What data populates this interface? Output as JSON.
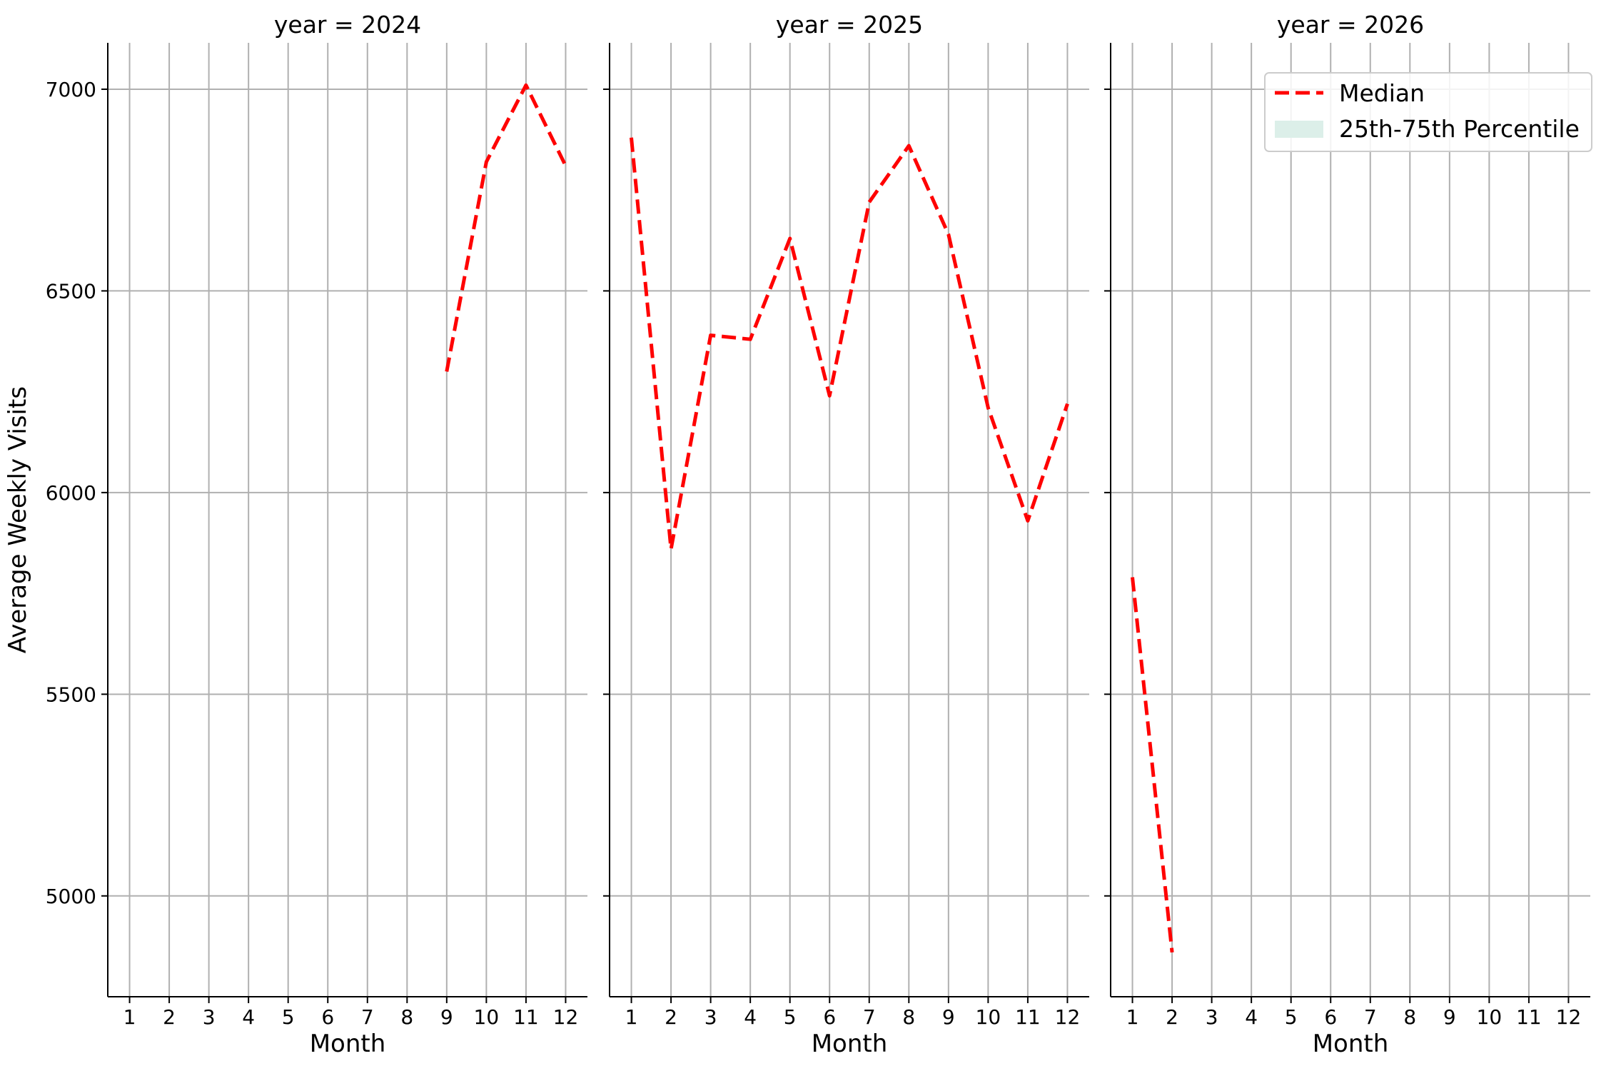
{
  "chart_data": {
    "type": "line",
    "ylabel": "Average Weekly Visits",
    "xlabel": "Month",
    "x_ticks": [
      1,
      2,
      3,
      4,
      5,
      6,
      7,
      8,
      9,
      10,
      11,
      12
    ],
    "y_ticks": [
      5000,
      5500,
      6000,
      6500,
      7000
    ],
    "xlim": [
      0.45,
      12.55
    ],
    "ylim": [
      4750,
      7115
    ],
    "grid": true,
    "legend_position": "top-right",
    "legend": [
      {
        "label": "Median",
        "kind": "dashed-line",
        "color": "#ff0000"
      },
      {
        "label": "25th-75th Percentile",
        "kind": "patch",
        "color": "#dcefe9"
      }
    ],
    "panels": [
      {
        "title": "year = 2024",
        "series": [
          {
            "name": "Median",
            "color": "#ff0000",
            "x": [
              9,
              10,
              11,
              12
            ],
            "y": [
              6300,
              6820,
              7010,
              6810
            ]
          }
        ]
      },
      {
        "title": "year = 2025",
        "series": [
          {
            "name": "Median",
            "color": "#ff0000",
            "x": [
              1,
              2,
              3,
              4,
              5,
              6,
              7,
              8,
              9,
              10,
              11,
              12
            ],
            "y": [
              6880,
              5860,
              6390,
              6380,
              6630,
              6240,
              6720,
              6860,
              6640,
              6210,
              5930,
              6220
            ]
          }
        ]
      },
      {
        "title": "year = 2026",
        "series": [
          {
            "name": "Median",
            "color": "#ff0000",
            "x": [
              1,
              2
            ],
            "y": [
              5790,
              4860
            ]
          }
        ]
      }
    ]
  }
}
